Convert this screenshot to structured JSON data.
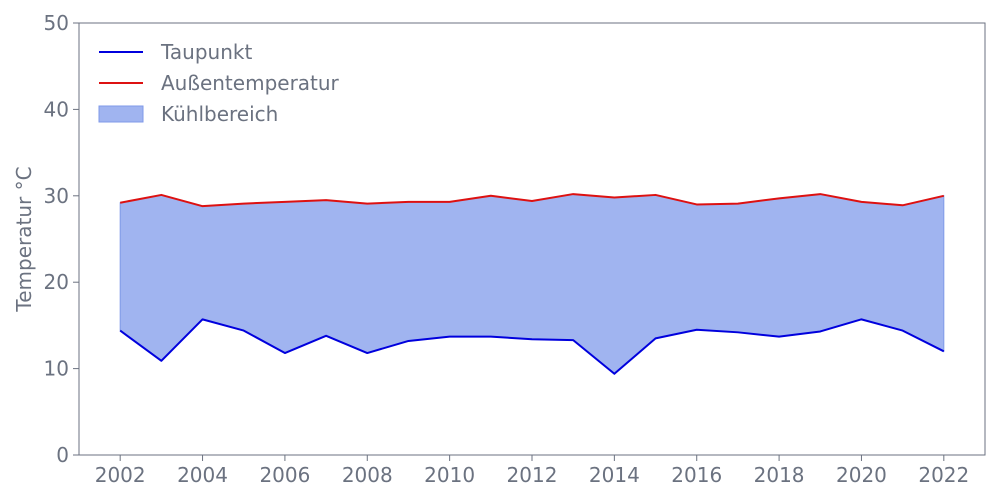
{
  "chart_data": {
    "type": "area",
    "title": "",
    "xlabel": "",
    "ylabel": "Temperatur °C",
    "xlim": [
      2001,
      2023
    ],
    "ylim": [
      0,
      50
    ],
    "x_ticks": [
      2002,
      2004,
      2006,
      2008,
      2010,
      2012,
      2014,
      2016,
      2018,
      2020,
      2022
    ],
    "y_ticks": [
      0,
      10,
      20,
      30,
      40,
      50
    ],
    "grid": false,
    "legend_position": "top-left",
    "x": [
      2002,
      2003,
      2004,
      2005,
      2006,
      2007,
      2008,
      2009,
      2010,
      2011,
      2012,
      2013,
      2014,
      2015,
      2016,
      2017,
      2018,
      2019,
      2020,
      2021,
      2022
    ],
    "series": [
      {
        "name": "Taupunkt",
        "color": "#0000dd",
        "values": [
          14.4,
          10.9,
          15.7,
          14.4,
          11.8,
          13.8,
          11.8,
          13.2,
          13.7,
          13.7,
          13.4,
          13.3,
          9.4,
          13.5,
          14.5,
          14.2,
          13.7,
          14.3,
          15.7,
          14.4,
          12.0
        ]
      },
      {
        "name": "Außentemperatur",
        "color": "#dd1111",
        "values": [
          29.2,
          30.1,
          28.8,
          29.1,
          29.3,
          29.5,
          29.1,
          29.3,
          29.3,
          30.0,
          29.4,
          30.2,
          29.8,
          30.1,
          29.0,
          29.1,
          29.7,
          30.2,
          29.3,
          28.9,
          30.0
        ]
      }
    ],
    "fill_between": {
      "name": "Kühlbereich",
      "color": "#a0b4f0",
      "edge_color": "#7f9ae8"
    }
  }
}
